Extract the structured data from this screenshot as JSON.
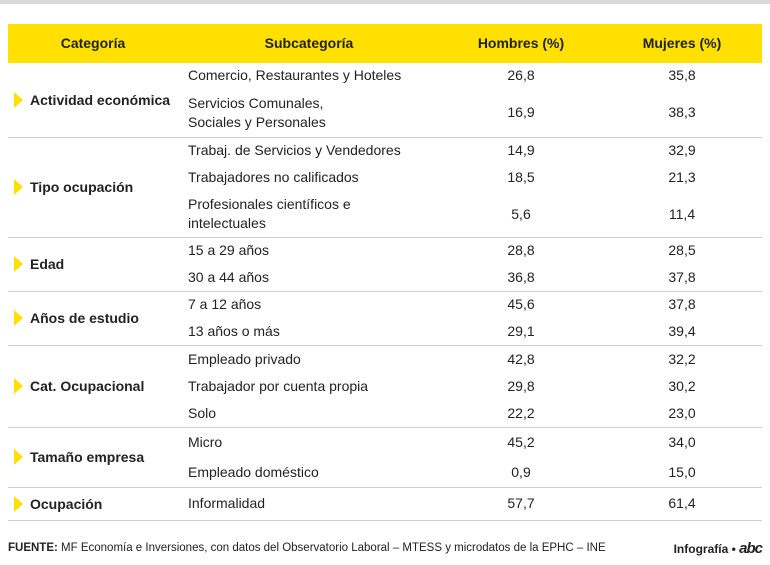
{
  "table": {
    "header": [
      "Categoría",
      "Subcategoría",
      "Hombres (%)",
      "Mujeres (%)"
    ],
    "groups": [
      {
        "category": "Actividad económica",
        "rows": [
          [
            "Comercio, Restaurantes y Hoteles",
            "26,8",
            "35,8"
          ],
          [
            "Servicios Comunales,\nSociales y Personales",
            "16,9",
            "38,3"
          ]
        ]
      },
      {
        "category": "Tipo ocupación",
        "rows": [
          [
            "Trabaj. de Servicios y Vendedores",
            "14,9",
            "32,9"
          ],
          [
            "Trabajadores no calificados",
            "18,5",
            "21,3"
          ],
          [
            "Profesionales científicos e\nintelectuales",
            "5,6",
            "11,4"
          ]
        ]
      },
      {
        "category": "Edad",
        "rows": [
          [
            "15 a 29 años",
            "28,8",
            "28,5"
          ],
          [
            "30 a 44 años",
            "36,8",
            "37,8"
          ]
        ]
      },
      {
        "category": "Años de estudio",
        "rows": [
          [
            "7 a 12 años",
            "45,6",
            "37,8"
          ],
          [
            "13 años o más",
            "29,1",
            "39,4"
          ]
        ]
      },
      {
        "category": "Cat. Ocupacional",
        "rows": [
          [
            "Empleado privado",
            "42,8",
            "32,2"
          ],
          [
            "Trabajador por cuenta propia",
            "29,8",
            "30,2"
          ],
          [
            "Solo",
            "22,2",
            "23,0"
          ]
        ]
      },
      {
        "category": "Tamaño empresa",
        "rows": [
          [
            "Micro",
            "45,2",
            "34,0"
          ],
          [
            "Empleado doméstico",
            "0,9",
            "15,0"
          ]
        ]
      },
      {
        "category": "Ocupación",
        "rows": [
          [
            "Informalidad",
            "57,7",
            "61,4"
          ]
        ]
      }
    ]
  },
  "footer": {
    "label": "FUENTE:",
    "text": " MF Economía e Inversiones, con datos del Observatorio Laboral – MTESS y microdatos de la EPHC – INE",
    "credit": "Infografía •",
    "logo": "abc"
  }
}
